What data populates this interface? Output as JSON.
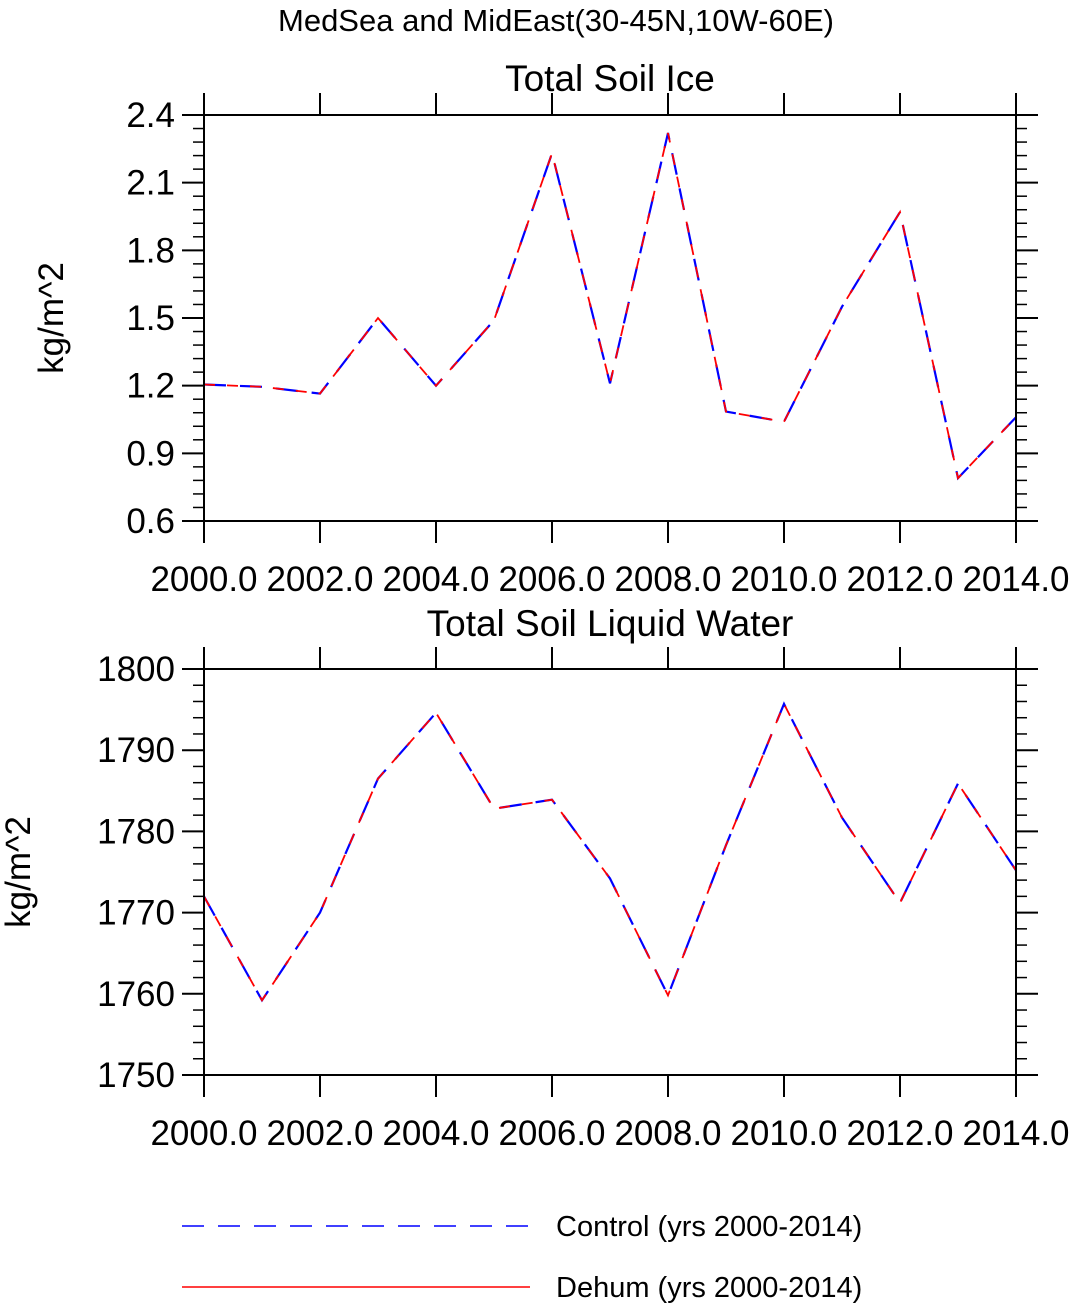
{
  "figure_title": "MedSea and MidEast(30-45N,10W-60E)",
  "legend": {
    "items": [
      {
        "label": "Control (yrs 2000-2014)",
        "color": "#0000ff",
        "style": "dashed"
      },
      {
        "label": "Dehum (yrs 2000-2014)",
        "color": "#ff0000",
        "style": "solid"
      }
    ]
  },
  "chart_data": [
    {
      "type": "line",
      "title": "Total Soil Ice",
      "xlabel": "",
      "ylabel": "kg/m^2",
      "xlim": [
        2000,
        2014
      ],
      "ylim": [
        0.6,
        2.4
      ],
      "x_ticks": [
        "2000.0",
        "2002.0",
        "2004.0",
        "2006.0",
        "2008.0",
        "2010.0",
        "2012.0",
        "2014.0"
      ],
      "y_ticks": [
        "0.6",
        "0.9",
        "1.2",
        "1.5",
        "1.8",
        "2.1",
        "2.4"
      ],
      "x": [
        2000,
        2001,
        2002,
        2003,
        2004,
        2005,
        2006,
        2007,
        2008,
        2009,
        2010,
        2011,
        2012,
        2013,
        2014
      ],
      "series": [
        {
          "name": "Control (yrs 2000-2014)",
          "values": [
            1.205,
            1.195,
            1.165,
            1.5,
            1.2,
            1.49,
            2.23,
            1.21,
            2.32,
            1.085,
            1.04,
            1.55,
            1.97,
            0.79,
            1.06
          ]
        },
        {
          "name": "Dehum (yrs 2000-2014)",
          "values": [
            1.205,
            1.195,
            1.165,
            1.5,
            1.2,
            1.49,
            2.23,
            1.21,
            2.32,
            1.085,
            1.04,
            1.55,
            1.97,
            0.79,
            1.06
          ]
        }
      ],
      "grid": false
    },
    {
      "type": "line",
      "title": "Total Soil Liquid Water",
      "xlabel": "",
      "ylabel": "kg/m^2",
      "xlim": [
        2000,
        2014
      ],
      "ylim": [
        1750,
        1800
      ],
      "x_ticks": [
        "2000.0",
        "2002.0",
        "2004.0",
        "2006.0",
        "2008.0",
        "2010.0",
        "2012.0",
        "2014.0"
      ],
      "y_ticks": [
        "1750",
        "1760",
        "1770",
        "1780",
        "1790",
        "1800"
      ],
      "x": [
        2000,
        2001,
        2002,
        2003,
        2004,
        2005,
        2006,
        2007,
        2008,
        2009,
        2010,
        2011,
        2012,
        2013,
        2014
      ],
      "series": [
        {
          "name": "Control (yrs 2000-2014)",
          "values": [
            1772.0,
            1759.2,
            1770.0,
            1786.5,
            1794.6,
            1782.8,
            1783.9,
            1774.2,
            1759.8,
            1778.3,
            1795.7,
            1781.7,
            1771.2,
            1785.9,
            1775.2
          ]
        },
        {
          "name": "Dehum (yrs 2000-2014)",
          "values": [
            1772.0,
            1759.2,
            1770.0,
            1786.5,
            1794.6,
            1782.8,
            1783.9,
            1774.2,
            1759.8,
            1778.3,
            1795.7,
            1781.7,
            1771.2,
            1785.9,
            1775.2
          ]
        }
      ],
      "grid": false
    }
  ]
}
